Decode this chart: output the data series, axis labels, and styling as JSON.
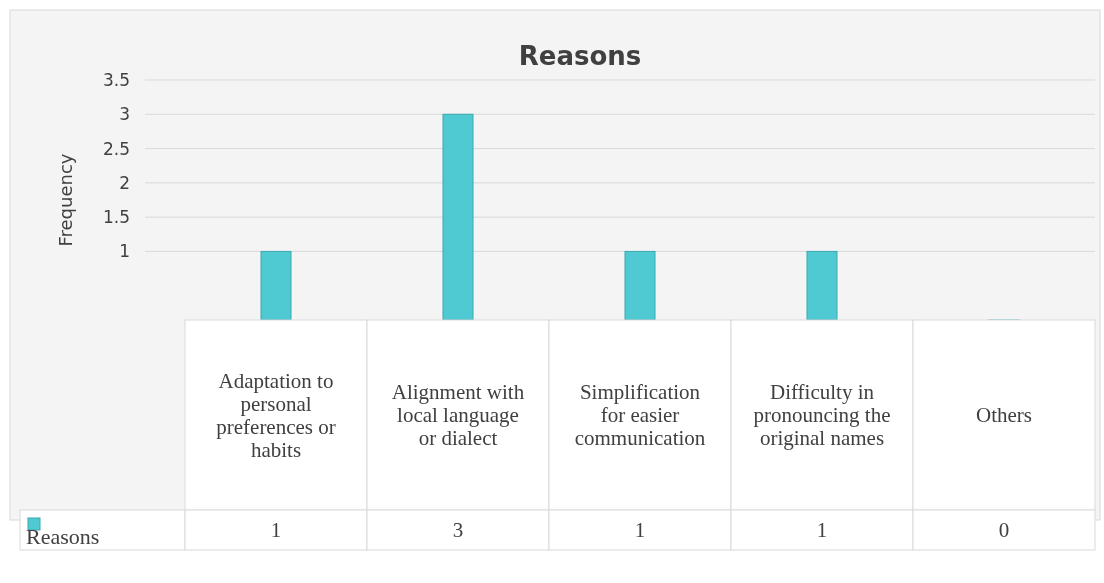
{
  "chart_data": {
    "type": "bar",
    "title": "Reasons",
    "ylabel": "Frequency",
    "categories": [
      "Adaptation to personal preferences or habits",
      "Alignment with local language or dialect",
      "Simplification for easier communication",
      "Difficulty in pronouncing the original names",
      "Others"
    ],
    "series": [
      {
        "name": "Reasons",
        "color": "#4fc9d2",
        "values": [
          1,
          3,
          1,
          1,
          0
        ]
      }
    ],
    "ylim": [
      0,
      3.5
    ],
    "yticks": [
      1,
      1.5,
      2,
      2.5,
      3,
      3.5
    ],
    "grid": "y",
    "data_labels": true,
    "legend": "bottom left"
  }
}
